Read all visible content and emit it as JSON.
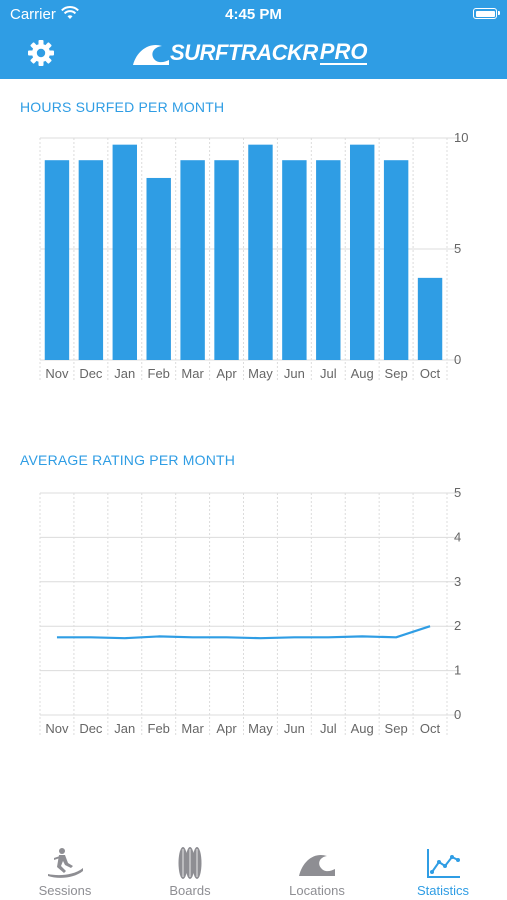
{
  "status_bar": {
    "carrier": "Carrier",
    "time": "4:45 PM",
    "wifi_icon": "wifi-icon",
    "battery_icon": "battery-icon"
  },
  "header": {
    "settings_icon": "gear-icon",
    "logo_text": "SURFTRACKR",
    "logo_pro": "PRO",
    "logo_icon": "wave-icon",
    "background": "#2f9de4"
  },
  "colors": {
    "accent": "#2f9de4",
    "bar": "#2f9de4",
    "grid": "#dcdcdc",
    "axis_text": "#666666",
    "tab_inactive": "#8e8e93"
  },
  "sections": {
    "hours_title": "HOURS SURFED PER MONTH",
    "rating_title": "AVERAGE RATING PER MONTH"
  },
  "chart_data": [
    {
      "type": "bar",
      "title": "HOURS SURFED PER MONTH",
      "categories": [
        "Nov",
        "Dec",
        "Jan",
        "Feb",
        "Mar",
        "Apr",
        "May",
        "Jun",
        "Jul",
        "Aug",
        "Sep",
        "Oct"
      ],
      "values": [
        9.0,
        9.0,
        9.7,
        8.2,
        9.0,
        9.0,
        9.7,
        9.0,
        9.0,
        9.7,
        9.0,
        3.7
      ],
      "ylim": [
        0,
        10
      ],
      "yticks": [
        "0",
        "5",
        "10"
      ],
      "xlabel": "",
      "ylabel": "",
      "grid": true,
      "y_axis_side": "right"
    },
    {
      "type": "line",
      "title": "AVERAGE RATING PER MONTH",
      "categories": [
        "Nov",
        "Dec",
        "Jan",
        "Feb",
        "Mar",
        "Apr",
        "May",
        "Jun",
        "Jul",
        "Aug",
        "Sep",
        "Oct"
      ],
      "values": [
        1.75,
        1.75,
        1.73,
        1.77,
        1.75,
        1.75,
        1.73,
        1.75,
        1.75,
        1.77,
        1.75,
        2.0
      ],
      "ylim": [
        0,
        5
      ],
      "yticks": [
        "0",
        "1",
        "2",
        "3",
        "4",
        "5"
      ],
      "xlabel": "",
      "ylabel": "",
      "grid": true,
      "y_axis_side": "right"
    }
  ],
  "tabbar": {
    "items": [
      {
        "label": "Sessions",
        "icon": "surfer-icon",
        "active": false
      },
      {
        "label": "Boards",
        "icon": "surfboards-icon",
        "active": false
      },
      {
        "label": "Locations",
        "icon": "wave-icon",
        "active": false
      },
      {
        "label": "Statistics",
        "icon": "line-chart-icon",
        "active": true
      }
    ]
  }
}
